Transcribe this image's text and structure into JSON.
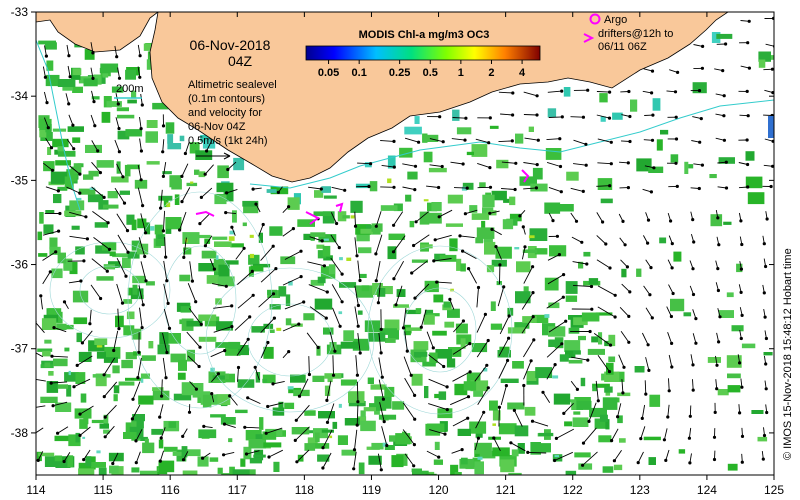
{
  "map": {
    "date_line": "06-Nov-2018",
    "time_line": "04Z",
    "colorbar_title": "MODIS Chl-a mg/m3 OC3",
    "colorbar_ticks": [
      "0.05",
      "0.1",
      "0.25",
      "0.5",
      "1",
      "2",
      "4"
    ],
    "colorbar_values": [
      0.05,
      0.1,
      0.25,
      0.5,
      1,
      2,
      4
    ],
    "contour_label": "200m",
    "info_lines": [
      "Altimetric sealevel",
      "(0.1m contours)",
      "and velocity for",
      "06-Nov 04Z"
    ],
    "scale_label": "0.5m/s (1kt 24h)",
    "argo_label": "Argo",
    "drifter_lines": [
      "drifters@12h to",
      "06/11 06Z"
    ],
    "credit": "© IMOS 15-Nov-2018 15:48:12 Hobart time",
    "x_ticks": [
      "114",
      "115",
      "116",
      "117",
      "118",
      "119",
      "120",
      "121",
      "122",
      "123",
      "124",
      "125"
    ],
    "y_ticks": [
      "-33",
      "-34",
      "-35",
      "-36",
      "-37",
      "-38"
    ],
    "lon_range": [
      114,
      125
    ],
    "lat_range": [
      -38.5,
      -33
    ],
    "colors": {
      "land": "#f9c89a",
      "contour": "#33cccc",
      "argo": "#ff00ff",
      "arrow": "#000000"
    }
  }
}
